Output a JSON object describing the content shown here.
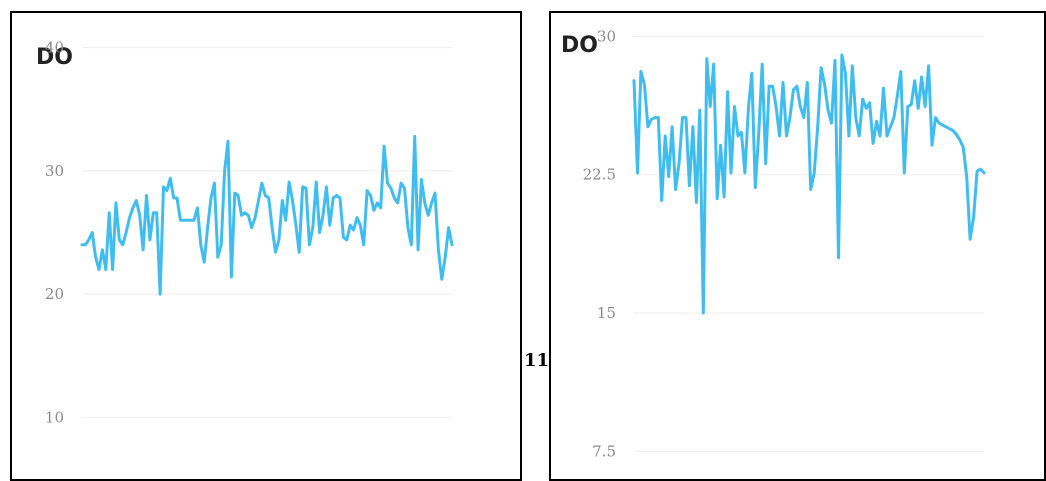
{
  "between_label": "11",
  "chart_data": [
    {
      "type": "line",
      "title": "DO",
      "xlabel": "",
      "ylabel": "",
      "ylim": [
        5,
        42
      ],
      "y_ticks": [
        10,
        20,
        30,
        40
      ],
      "grid": true,
      "line_color": "#3fbdf0",
      "series": [
        {
          "values": [
            24,
            24,
            24.4,
            25,
            23,
            22,
            23.6,
            22,
            26.6,
            22,
            27.4,
            24.4,
            24,
            25,
            26.2,
            27,
            27.6,
            26.4,
            23.6,
            28,
            24.4,
            26.6,
            26.6,
            20,
            28.7,
            28.4,
            29.4,
            27.8,
            27.8,
            26,
            26,
            26,
            26,
            26,
            27,
            24,
            22.6,
            25.4,
            27.8,
            29,
            23,
            24,
            30,
            32.4,
            21.4,
            28.2,
            28,
            26.4,
            26.6,
            26.4,
            25.4,
            26.2,
            27.6,
            29,
            28,
            27.8,
            25.4,
            23.4,
            24.4,
            27.6,
            26,
            29.1,
            27.6,
            25.6,
            23.4,
            28.7,
            28.6,
            24,
            25.4,
            29.1,
            25,
            26.4,
            28.7,
            25.6,
            27.8,
            28,
            27.8,
            24.6,
            24.4,
            25.6,
            25.2,
            26.2,
            25.6,
            24,
            28.4,
            28,
            26.8,
            27.4,
            27,
            32,
            29,
            28.6,
            27.8,
            27.4,
            29,
            28.6,
            25.4,
            24,
            32.8,
            23.6,
            29.3,
            27.4,
            26.4,
            27.4,
            28.2,
            23.6,
            21.2,
            23,
            25.4,
            24
          ]
        }
      ]
    },
    {
      "type": "line",
      "title": "DO",
      "xlabel": "",
      "ylabel": "",
      "ylim": [
        6,
        31
      ],
      "y_ticks": [
        7.5,
        15,
        22.5,
        30
      ],
      "grid": true,
      "line_color": "#3fbdf0",
      "series": [
        {
          "values": [
            27.6,
            22.6,
            28.1,
            27.4,
            25.1,
            25.5,
            25.6,
            25.6,
            21.1,
            24.6,
            22.4,
            25.1,
            21.7,
            23.1,
            25.6,
            25.6,
            21.9,
            25.1,
            21,
            26,
            15,
            28.8,
            26.2,
            28.5,
            21.2,
            24.1,
            21.3,
            27,
            22.6,
            26.2,
            24.6,
            24.8,
            22.6,
            26.1,
            28,
            21.8,
            24.8,
            28.5,
            23.1,
            27.3,
            27.3,
            26.2,
            24.6,
            27.5,
            24.6,
            25.6,
            27.1,
            27.3,
            26.2,
            25.6,
            27.5,
            21.7,
            22.6,
            25.1,
            28.3,
            27.4,
            26,
            25.3,
            28.7,
            18,
            29,
            28,
            24.6,
            28.4,
            25.6,
            24.6,
            26.6,
            26.1,
            26.4,
            24.2,
            25.4,
            24.6,
            27.2,
            24.6,
            25.1,
            25.6,
            26.8,
            28.1,
            22.6,
            26.2,
            26.3,
            27.6,
            26.1,
            27.8,
            26.2,
            28.4,
            24.1,
            25.6,
            25.3,
            25.2,
            25.1,
            25.0,
            24.9,
            24.7,
            24.4,
            24.0,
            22.4,
            19,
            20.2,
            22.7,
            22.8,
            22.6
          ]
        }
      ]
    }
  ]
}
